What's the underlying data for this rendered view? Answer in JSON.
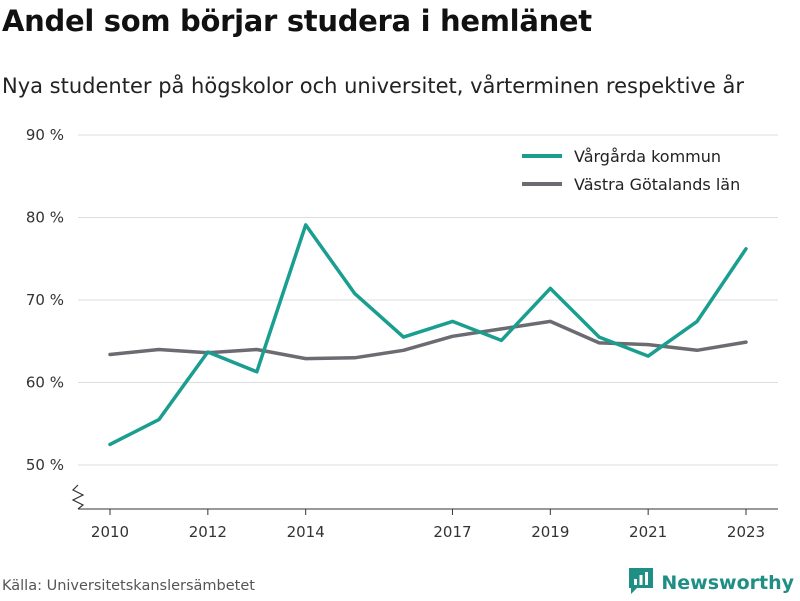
{
  "header": {
    "title": "Andel som börjar studera i hemlänet",
    "subtitle": "Nya studenter på högskolor och universitet, vårterminen respektive år"
  },
  "footer": {
    "source": "Källa: Universitetskanslersämbetet",
    "brand": "Newsworthy",
    "brand_icon": "newsworthy-logo-icon"
  },
  "colors": {
    "vargarda": "#1a9e8f",
    "vastra_gotaland": "#6b6b72",
    "grid": "#dddddd",
    "brand": "#1f8f86"
  },
  "chart_data": {
    "type": "line",
    "x": [
      2010,
      2011,
      2012,
      2013,
      2014,
      2015,
      2016,
      2017,
      2018,
      2019,
      2020,
      2021,
      2022,
      2023
    ],
    "x_tick_labels": [
      "2010",
      "2012",
      "2014",
      "2017",
      "2019",
      "2021",
      "2023"
    ],
    "y_tick_labels": [
      "50 %",
      "60 %",
      "70 %",
      "80 %",
      "90 %"
    ],
    "y_ticks": [
      50,
      60,
      70,
      80,
      90
    ],
    "ylim": [
      45,
      90
    ],
    "grid": true,
    "legend_position": "top-right",
    "series": [
      {
        "name": "Vårgårda kommun",
        "color": "#1a9e8f",
        "values": [
          52.5,
          55.5,
          63.7,
          61.3,
          79.1,
          70.8,
          65.5,
          67.4,
          65.1,
          71.4,
          65.5,
          63.2,
          67.4,
          76.2
        ]
      },
      {
        "name": "Västra Götalands län",
        "color": "#6b6b72",
        "values": [
          63.4,
          64.0,
          63.6,
          64.0,
          62.9,
          63.0,
          63.9,
          65.6,
          66.5,
          67.4,
          64.8,
          64.6,
          63.9,
          64.9
        ]
      }
    ]
  }
}
